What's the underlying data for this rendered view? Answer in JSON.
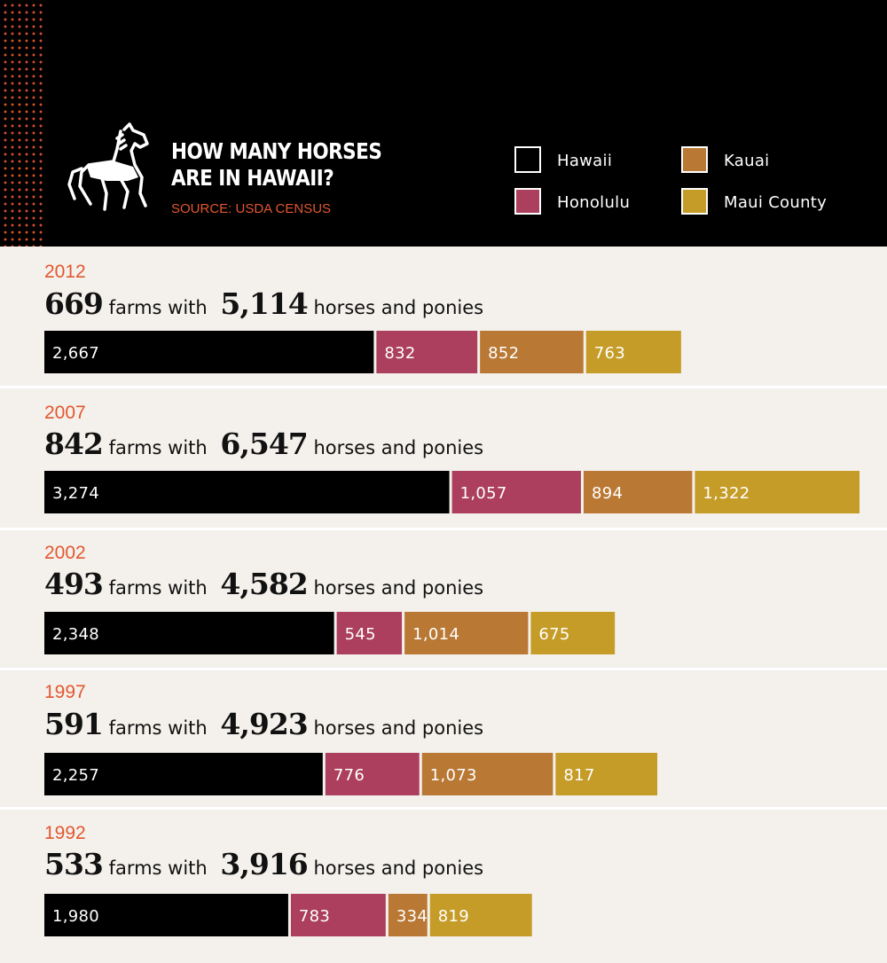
{
  "header": {
    "title_line1": "HOW MANY HORSES",
    "title_line2": "ARE IN HAWAII?",
    "source": "SOURCE: USDA CENSUS",
    "logo": "horse-icon"
  },
  "legend": [
    {
      "label": "Hawaii",
      "color": "#000000"
    },
    {
      "label": "Kauai",
      "color": "#b97834"
    },
    {
      "label": "Honolulu",
      "color": "#ab3f5d"
    },
    {
      "label": "Maui County",
      "color": "#c59c27"
    }
  ],
  "rows": [
    {
      "year": "2012",
      "farms": "669",
      "horses": "5,114",
      "text_mid": "farms with",
      "text_end": "horses and ponies"
    },
    {
      "year": "2007",
      "farms": "842",
      "horses": "6,547",
      "text_mid": "farms with",
      "text_end": "horses and ponies"
    },
    {
      "year": "2002",
      "farms": "493",
      "horses": "4,582",
      "text_mid": "farms with",
      "text_end": "horses and ponies"
    },
    {
      "year": "1997",
      "farms": "591",
      "horses": "4,923",
      "text_mid": "farms with",
      "text_end": "horses and ponies"
    },
    {
      "year": "1992",
      "farms": "533",
      "horses": "3,916",
      "text_mid": "farms with",
      "text_end": "horses and ponies"
    }
  ],
  "chart_data": {
    "type": "bar",
    "stacked": true,
    "orientation": "horizontal",
    "title": "HOW MANY HORSES ARE IN HAWAII?",
    "categories": [
      "2012",
      "2007",
      "2002",
      "1997",
      "1992"
    ],
    "series": [
      {
        "name": "Hawaii",
        "color": "#000000",
        "values": [
          2667,
          3274,
          2348,
          2257,
          1980
        ],
        "labels": [
          "2,667",
          "3,274",
          "2,348",
          "2,257",
          "1,980"
        ]
      },
      {
        "name": "Honolulu",
        "color": "#ab3f5d",
        "values": [
          832,
          1057,
          545,
          776,
          783
        ],
        "labels": [
          "832",
          "1,057",
          "545",
          "776",
          "783"
        ]
      },
      {
        "name": "Kauai",
        "color": "#b97834",
        "values": [
          852,
          894,
          1014,
          1073,
          334
        ],
        "labels": [
          "852",
          "894",
          "1,014",
          "1,073",
          "334"
        ]
      },
      {
        "name": "Maui County",
        "color": "#c59c27",
        "values": [
          763,
          1322,
          675,
          817,
          819
        ],
        "labels": [
          "763",
          "1,322",
          "675",
          "817",
          "819"
        ]
      }
    ],
    "totals": [
      5114,
      6547,
      4582,
      4923,
      3916
    ],
    "farms": [
      669,
      842,
      493,
      591,
      533
    ],
    "grid": false,
    "legend_position": "top-right"
  }
}
